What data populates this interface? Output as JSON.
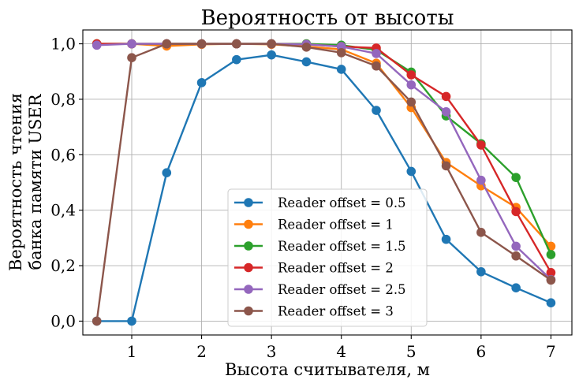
{
  "chart_data": {
    "type": "line",
    "title": "Вероятность от высоты",
    "xlabel": "Высота считывателя, м",
    "ylabel_lines": [
      "Вероятность чтения",
      "банка памяти USER"
    ],
    "xlim": [
      0.3,
      7.3
    ],
    "ylim": [
      -0.05,
      1.05
    ],
    "xticks": [
      1,
      2,
      3,
      4,
      5,
      6,
      7
    ],
    "xtick_labels": [
      "1",
      "2",
      "3",
      "4",
      "5",
      "6",
      "7"
    ],
    "yticks": [
      0.0,
      0.2,
      0.4,
      0.6,
      0.8,
      1.0
    ],
    "ytick_labels": [
      "0,0",
      "0,2",
      "0,4",
      "0,6",
      "0,8",
      "1,0"
    ],
    "grid": true,
    "legend_position": "lower-center",
    "x": [
      0.5,
      1,
      1.5,
      2,
      2.5,
      3,
      3.5,
      4,
      4.5,
      5,
      5.5,
      6,
      6.5,
      7
    ],
    "series": [
      {
        "name": "Reader offset = 0.5",
        "color": "#1f77b4",
        "values": [
          0.0,
          0.0,
          0.535,
          0.86,
          0.943,
          0.96,
          0.935,
          0.908,
          0.76,
          0.54,
          0.295,
          0.178,
          0.12,
          0.066
        ]
      },
      {
        "name": "Reader offset = 1",
        "color": "#ff7f0e",
        "values": [
          1.0,
          1.0,
          0.992,
          0.998,
          1.0,
          0.998,
          0.99,
          0.98,
          0.93,
          0.77,
          0.572,
          0.488,
          0.41,
          0.27
        ]
      },
      {
        "name": "Reader offset = 1.5",
        "color": "#2ca02c",
        "values": [
          1.0,
          1.0,
          1.0,
          1.0,
          1.0,
          1.0,
          1.0,
          0.995,
          0.978,
          0.898,
          0.74,
          0.64,
          0.518,
          0.24
        ]
      },
      {
        "name": "Reader offset = 2",
        "color": "#d62728",
        "values": [
          1.0,
          1.0,
          1.0,
          1.0,
          1.0,
          1.0,
          0.998,
          0.99,
          0.985,
          0.888,
          0.81,
          0.635,
          0.395,
          0.175
        ]
      },
      {
        "name": "Reader offset = 2.5",
        "color": "#9467bd",
        "values": [
          0.995,
          1.0,
          1.0,
          1.0,
          1.0,
          1.0,
          0.998,
          0.99,
          0.965,
          0.852,
          0.755,
          0.508,
          0.27,
          0.15
        ]
      },
      {
        "name": "Reader offset = 3",
        "color": "#8c564b",
        "values": [
          0.0,
          0.95,
          1.0,
          1.0,
          1.0,
          1.0,
          0.988,
          0.968,
          0.92,
          0.79,
          0.56,
          0.32,
          0.235,
          0.148
        ]
      }
    ]
  }
}
